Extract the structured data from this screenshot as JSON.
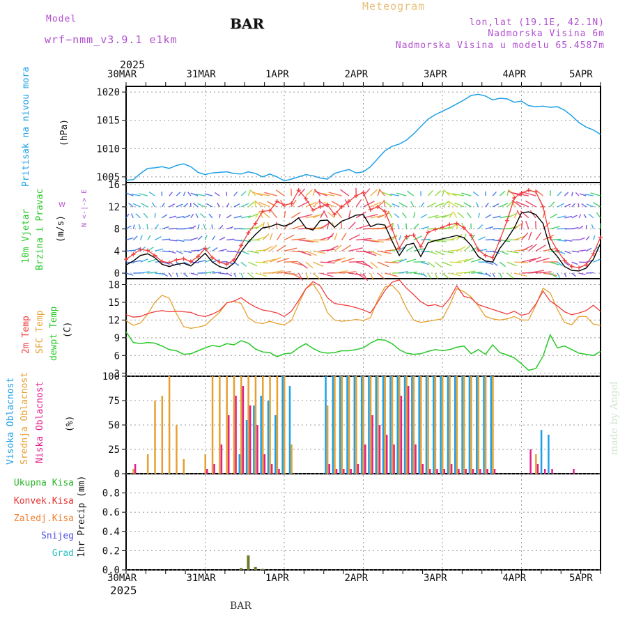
{
  "header": {
    "model_label": "Model",
    "model_name": "wrf−nmm_v3.9.1  e1km",
    "station": "BAR",
    "chart_title": "Meteogram",
    "location": "lon,lat (19.1E, 42.1N)",
    "elevation": "Nadmorska Visina 6m",
    "model_elevation": "Nadmorska Visina u modelu 65.4587m"
  },
  "x_axis": {
    "year": "2025",
    "labels": [
      "30MAR",
      "31MAR",
      "1APR",
      "2APR",
      "3APR",
      "4APR",
      "5APR"
    ]
  },
  "footer": {
    "station": "BAR",
    "credit": "made by Angel"
  },
  "colors": {
    "pressure": "#1ea0e6",
    "temp2m": "#f03c3c",
    "sfc": "#e6a030",
    "dewpt": "#28c828",
    "wind_black": "#000000",
    "wind_gust": "#f03c3c",
    "cloud_high": "#1ea0e6",
    "cloud_mid": "#e6a030",
    "cloud_low": "#e0208c",
    "rain_total": "#28b428",
    "rain_conv": "#e63232",
    "rain_frz": "#f08030",
    "snow": "#5050e0",
    "hail": "#28c0c0"
  },
  "chart_data": [
    {
      "type": "line",
      "panel": "pressure",
      "ylabel": "(hPa)",
      "side_label": "Pritisak na nivou mora",
      "ylim": [
        1004,
        1021
      ],
      "yticks": [
        1005,
        1010,
        1015,
        1020
      ],
      "grid": true,
      "series": [
        {
          "values": [
            1004.4,
            1004.5,
            1005.6,
            1006.5,
            1006.6,
            1006.8,
            1006.5,
            1007.0,
            1007.3,
            1006.8,
            1005.8,
            1005.4,
            1005.7,
            1005.8,
            1005.9,
            1005.6,
            1005.5,
            1005.9,
            1005.6,
            1005.0,
            1005.5,
            1005.0,
            1004.3,
            1004.6,
            1005.0,
            1005.4,
            1005.2,
            1004.8,
            1004.6,
            1005.6,
            1006.0,
            1006.3,
            1005.7,
            1005.9,
            1006.8,
            1008.2,
            1009.6,
            1010.4,
            1010.8,
            1011.5,
            1012.6,
            1013.9,
            1015.2,
            1016.0,
            1016.6,
            1017.2,
            1017.9,
            1018.6,
            1019.4,
            1019.6,
            1019.3,
            1018.6,
            1018.9,
            1018.8,
            1018.2,
            1018.4,
            1017.6,
            1017.4,
            1017.5,
            1017.3,
            1017.4,
            1016.8,
            1015.8,
            1014.6,
            1013.8,
            1013.3,
            1012.5
          ]
        }
      ]
    },
    {
      "type": "line",
      "panel": "wind",
      "ylabel": "(m/s)",
      "side_label_1": "10m Vjetar",
      "side_label_2": "Brzina i Pravac",
      "compass": "N  <-|->  E",
      "compass_small": "W",
      "ylim": [
        -1,
        16.4
      ],
      "yticks": [
        0,
        4,
        8,
        12,
        16
      ],
      "grid": true,
      "series": [
        {
          "name": "speed",
          "values": [
            1.5,
            2.2,
            3.2,
            3.5,
            2.8,
            1.6,
            1.2,
            1.6,
            1.8,
            1.3,
            2.4,
            3.6,
            2.0,
            1.2,
            0.8,
            1.8,
            3.9,
            5.6,
            7.0,
            8.2,
            8.4,
            8.9,
            8.5,
            9.0,
            10.0,
            8.2,
            7.8,
            9.5,
            9.6,
            8.3,
            9.4,
            9.9,
            10.5,
            10.6,
            8.4,
            8.9,
            8.7,
            5.8,
            3.2,
            5.1,
            5.4,
            3.0,
            5.5,
            5.9,
            6.2,
            6.5,
            6.8,
            6.4,
            5.0,
            3.0,
            2.2,
            2.0,
            4.5,
            6.2,
            8.2,
            10.9,
            11.1,
            10.6,
            9.0,
            4.5,
            3.0,
            1.2,
            0.5,
            0.4,
            0.9,
            2.5,
            5.4
          ]
        },
        {
          "name": "gust",
          "values": [
            2.5,
            3.4,
            4.3,
            4.1,
            3.2,
            2.1,
            1.9,
            2.4,
            2.6,
            2.1,
            3.0,
            4.5,
            2.8,
            2.0,
            1.6,
            2.4,
            5.0,
            7.3,
            9.0,
            11.2,
            11.3,
            13.0,
            12.3,
            12.6,
            15.0,
            13.5,
            11.4,
            12.0,
            12.4,
            10.6,
            12.0,
            13.0,
            14.0,
            14.6,
            11.5,
            12.0,
            11.2,
            8.0,
            4.5,
            6.6,
            6.9,
            4.8,
            7.4,
            7.9,
            8.3,
            8.8,
            9.0,
            8.2,
            6.8,
            4.2,
            3.2,
            2.8,
            6.0,
            9.5,
            13.6,
            14.5,
            15.0,
            14.7,
            12.0,
            6.4,
            4.1,
            2.3,
            1.2,
            1.0,
            1.5,
            3.5,
            6.5
          ]
        }
      ]
    },
    {
      "type": "line",
      "panel": "temperature",
      "ylabel": "(C)",
      "side_label_1": "2m Temp",
      "side_label_2": "SFC Temp",
      "side_label_3": "dewpt Temp",
      "ylim": [
        2.5,
        19
      ],
      "yticks": [
        3,
        6,
        9,
        12,
        15,
        18
      ],
      "grid": true,
      "series": [
        {
          "name": "2m",
          "values": [
            12.9,
            12.5,
            12.6,
            13.1,
            13.4,
            13.6,
            13.4,
            13.5,
            13.4,
            13.3,
            12.8,
            12.6,
            13.0,
            13.6,
            14.9,
            15.2,
            15.8,
            14.9,
            14.2,
            13.7,
            13.5,
            13.2,
            12.6,
            13.5,
            15.3,
            17.3,
            18.5,
            17.8,
            15.8,
            14.8,
            14.6,
            14.4,
            14.1,
            13.7,
            13.2,
            15.0,
            17.0,
            18.4,
            18.8,
            17.4,
            16.3,
            15.1,
            14.4,
            14.6,
            14.2,
            15.6,
            17.8,
            16.0,
            15.7,
            14.6,
            14.2,
            13.8,
            13.4,
            13.0,
            13.5,
            12.8,
            13.1,
            14.7,
            16.9,
            15.2,
            14.4,
            13.4,
            12.9,
            13.2,
            13.6,
            14.5,
            13.5
          ]
        },
        {
          "name": "sfc",
          "values": [
            11.9,
            11.1,
            11.5,
            13.0,
            15.0,
            16.2,
            15.7,
            13.1,
            10.9,
            10.6,
            10.8,
            11.1,
            12.2,
            13.3,
            14.9,
            15.2,
            14.8,
            12.4,
            11.6,
            11.4,
            11.8,
            11.4,
            11.2,
            11.9,
            14.7,
            17.3,
            18.1,
            16.3,
            13.3,
            12.0,
            11.8,
            11.9,
            12.1,
            11.9,
            12.4,
            15.4,
            17.6,
            17.9,
            16.6,
            14.0,
            12.0,
            11.6,
            11.8,
            12.0,
            12.2,
            14.5,
            17.3,
            16.8,
            15.9,
            14.4,
            12.6,
            12.2,
            12.0,
            12.2,
            12.6,
            12.0,
            12.0,
            14.5,
            17.4,
            16.6,
            13.8,
            11.6,
            11.2,
            12.6,
            12.6,
            11.3,
            11.1
          ]
        },
        {
          "name": "dewpt",
          "values": [
            10.0,
            8.2,
            8.0,
            8.2,
            8.1,
            7.6,
            7.0,
            6.8,
            6.2,
            6.3,
            6.8,
            7.3,
            7.7,
            7.5,
            8.0,
            7.8,
            8.5,
            8.1,
            7.1,
            6.6,
            6.5,
            5.8,
            6.3,
            6.4,
            7.3,
            8.0,
            7.2,
            6.6,
            6.4,
            6.5,
            6.8,
            6.8,
            7.0,
            7.3,
            8.1,
            8.7,
            8.6,
            8.0,
            7.0,
            6.4,
            6.2,
            6.3,
            6.7,
            7.0,
            6.8,
            7.0,
            7.4,
            7.6,
            6.3,
            7.0,
            6.2,
            7.8,
            6.5,
            6.1,
            5.6,
            4.6,
            3.5,
            3.8,
            5.9,
            9.5,
            7.3,
            7.6,
            7.0,
            6.4,
            6.2,
            6.0,
            6.7
          ]
        }
      ]
    },
    {
      "type": "bar",
      "panel": "cloud",
      "ylabel": "(%)",
      "side_label_1": "Visoka Oblacnost",
      "side_label_2": "Srednja Oblacnost",
      "side_label_3": "Niska Oblacnost",
      "ylim": [
        0,
        100
      ],
      "yticks": [
        0,
        25,
        50,
        75,
        100
      ],
      "grid": true,
      "series": [
        {
          "name": "high",
          "values": [
            0,
            0,
            0,
            0,
            0,
            0,
            0,
            0,
            0,
            0,
            0,
            0,
            0,
            0,
            0,
            0,
            20,
            55,
            70,
            80,
            75,
            60,
            100,
            90,
            0,
            0,
            0,
            0,
            100,
            100,
            100,
            100,
            100,
            100,
            100,
            100,
            100,
            100,
            100,
            100,
            100,
            100,
            100,
            100,
            100,
            100,
            100,
            100,
            100,
            100,
            100,
            100,
            0,
            0,
            0,
            0,
            0,
            0,
            45,
            40,
            0,
            0,
            0,
            0,
            0,
            0,
            0
          ]
        },
        {
          "name": "mid",
          "values": [
            0,
            5,
            0,
            20,
            75,
            80,
            100,
            50,
            15,
            0,
            0,
            20,
            100,
            100,
            100,
            100,
            100,
            100,
            100,
            100,
            100,
            100,
            100,
            30,
            0,
            0,
            0,
            0,
            70,
            100,
            100,
            100,
            100,
            100,
            100,
            100,
            100,
            100,
            100,
            100,
            100,
            100,
            100,
            100,
            100,
            100,
            100,
            100,
            100,
            100,
            100,
            100,
            0,
            0,
            0,
            0,
            0,
            20,
            0,
            0,
            0,
            0,
            0,
            0,
            0,
            0,
            0
          ]
        },
        {
          "name": "low",
          "values": [
            0,
            10,
            0,
            0,
            0,
            0,
            0,
            0,
            0,
            0,
            0,
            5,
            10,
            30,
            60,
            80,
            90,
            70,
            50,
            20,
            10,
            5,
            0,
            0,
            0,
            0,
            0,
            0,
            10,
            5,
            5,
            5,
            10,
            30,
            60,
            50,
            40,
            30,
            80,
            90,
            30,
            10,
            5,
            5,
            5,
            10,
            5,
            5,
            5,
            5,
            5,
            5,
            0,
            0,
            0,
            0,
            25,
            10,
            5,
            5,
            0,
            0,
            5,
            0,
            0,
            0,
            0
          ]
        }
      ]
    },
    {
      "type": "bar",
      "panel": "precipitation",
      "ylabel": "1hr Precip (mm)",
      "legend": [
        "Ukupna Kisa",
        "Konvek.Kisa",
        "Zaledj.Kisa",
        "Snijeg",
        "Grad"
      ],
      "ylim": [
        0,
        1.0
      ],
      "yticks": [
        0,
        0.2,
        0.4,
        0.6,
        0.8
      ],
      "grid": true,
      "series": [
        {
          "name": "Ukupna Kisa",
          "values": [
            0,
            0,
            0,
            0,
            0,
            0,
            0,
            0,
            0,
            0,
            0,
            0,
            0,
            0,
            0,
            0,
            0.02,
            0.15,
            0.03,
            0.01,
            0,
            0,
            0,
            0,
            0,
            0,
            0,
            0,
            0,
            0,
            0,
            0,
            0,
            0,
            0,
            0,
            0,
            0,
            0,
            0,
            0,
            0,
            0,
            0,
            0,
            0,
            0,
            0,
            0,
            0,
            0,
            0,
            0,
            0,
            0,
            0,
            0,
            0,
            0,
            0,
            0,
            0,
            0,
            0,
            0,
            0,
            0
          ]
        }
      ]
    }
  ]
}
